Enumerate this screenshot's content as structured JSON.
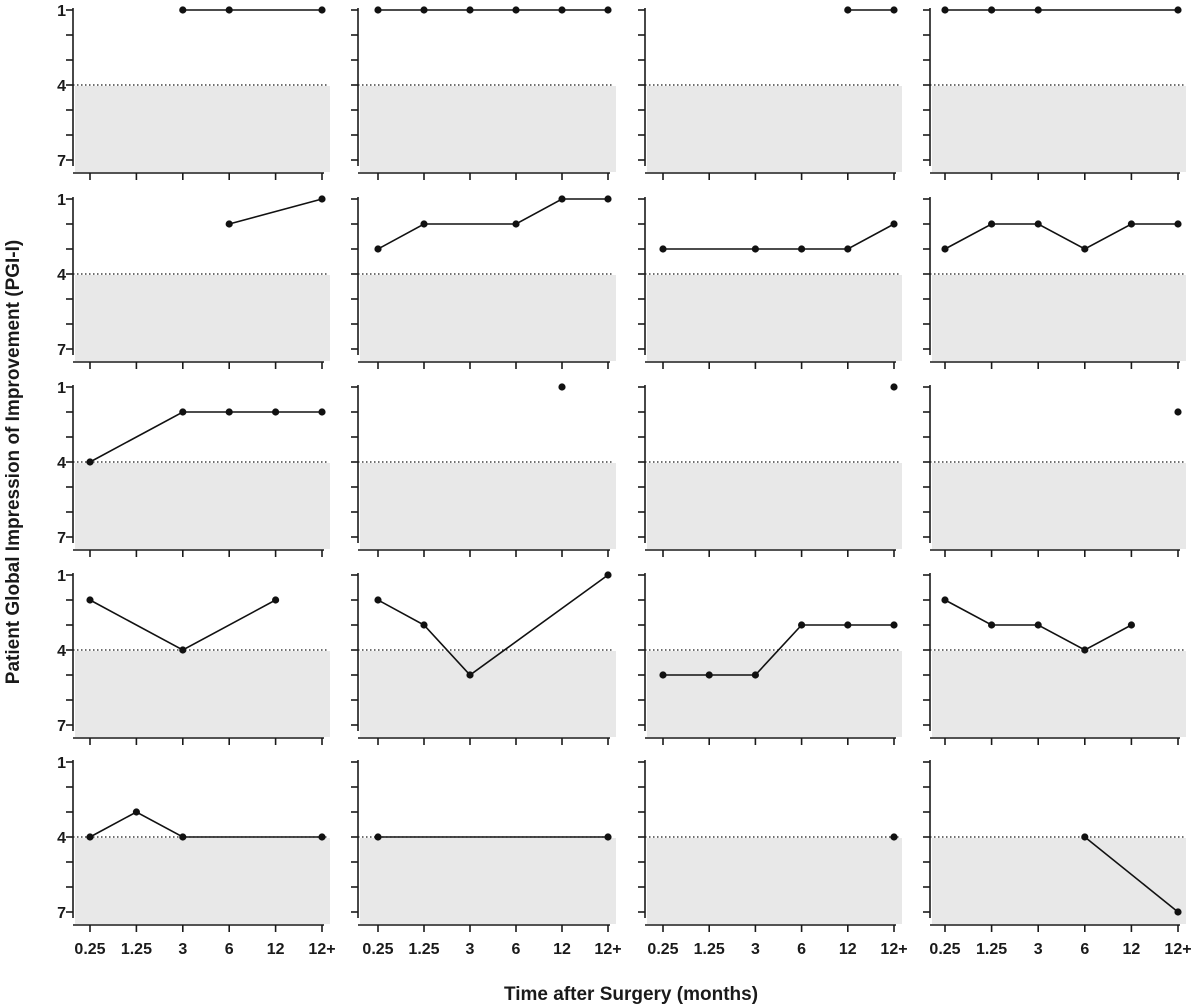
{
  "chart_data": {
    "type": "line",
    "layout": {
      "rows": 5,
      "cols": 4
    },
    "xlabel": "Time after Surgery (months)",
    "ylabel": "Patient Global Impression of Improvement (PGI-I)",
    "x_categories": [
      "0.25",
      "1.25",
      "3",
      "6",
      "12",
      "12+"
    ],
    "y_tick_labels": [
      "1",
      "4",
      "7"
    ],
    "ylim": [
      1,
      7
    ],
    "y_inverted": true,
    "reference_line": 4,
    "shaded_region": [
      4,
      7
    ],
    "colors": {
      "line": "#111111",
      "shade": "#e8e8e8",
      "axis": "#1a1a1a"
    },
    "panels": [
      {
        "values": [
          null,
          null,
          1,
          1,
          null,
          1
        ]
      },
      {
        "values": [
          1,
          1,
          1,
          1,
          1,
          1
        ]
      },
      {
        "values": [
          null,
          null,
          null,
          null,
          1,
          1
        ]
      },
      {
        "values": [
          1,
          1,
          1,
          null,
          null,
          1
        ]
      },
      {
        "values": [
          null,
          null,
          null,
          2,
          null,
          1
        ]
      },
      {
        "values": [
          3,
          2,
          null,
          2,
          1,
          1
        ]
      },
      {
        "values": [
          3,
          null,
          3,
          3,
          3,
          2
        ]
      },
      {
        "values": [
          3,
          2,
          2,
          3,
          2,
          2
        ]
      },
      {
        "values": [
          4,
          null,
          2,
          2,
          2,
          2
        ]
      },
      {
        "values": [
          null,
          null,
          null,
          null,
          1,
          null
        ]
      },
      {
        "values": [
          null,
          null,
          null,
          null,
          null,
          1
        ]
      },
      {
        "values": [
          null,
          null,
          null,
          null,
          null,
          2
        ]
      },
      {
        "values": [
          2,
          null,
          4,
          null,
          2,
          null
        ]
      },
      {
        "values": [
          2,
          3,
          5,
          null,
          null,
          1
        ]
      },
      {
        "values": [
          5,
          5,
          5,
          3,
          3,
          3
        ]
      },
      {
        "values": [
          2,
          3,
          3,
          4,
          3,
          null
        ]
      },
      {
        "values": [
          4,
          3,
          4,
          null,
          null,
          4
        ]
      },
      {
        "values": [
          4,
          null,
          null,
          null,
          null,
          4
        ]
      },
      {
        "values": [
          null,
          null,
          null,
          null,
          null,
          4
        ]
      },
      {
        "values": [
          null,
          null,
          null,
          4,
          null,
          7
        ]
      }
    ]
  }
}
